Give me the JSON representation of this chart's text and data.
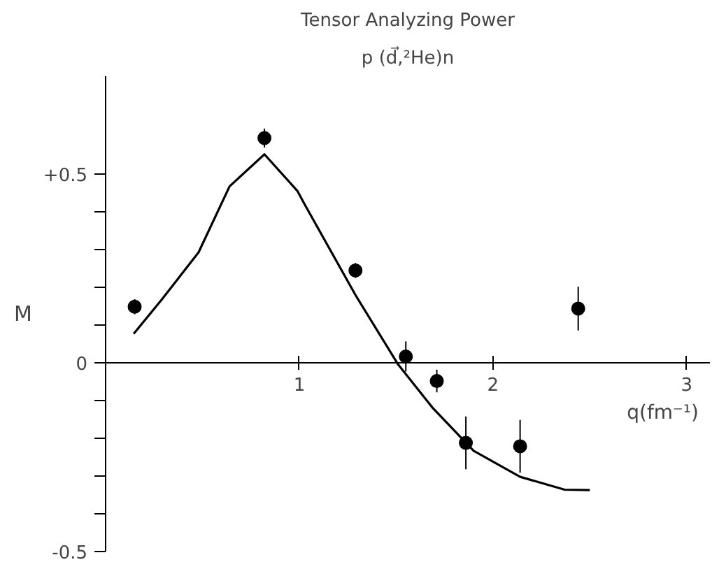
{
  "chart_data": {
    "type": "scatter",
    "title": "Tensor Analyzing Power",
    "subtitle": "p (d⃗,²He)n",
    "xlabel": "q(fm⁻¹)",
    "ylabel": "M",
    "xlim": [
      0,
      3.12
    ],
    "ylim": [
      -0.5,
      0.76
    ],
    "xticks": [
      1,
      2,
      3
    ],
    "yticks": [
      {
        "value": -0.5,
        "label": "-0.5"
      },
      {
        "value": -0.4,
        "label": null
      },
      {
        "value": -0.3,
        "label": null
      },
      {
        "value": -0.2,
        "label": null
      },
      {
        "value": -0.1,
        "label": null
      },
      {
        "value": 0,
        "label": "0"
      },
      {
        "value": 0.1,
        "label": null
      },
      {
        "value": 0.2,
        "label": null
      },
      {
        "value": 0.3,
        "label": null
      },
      {
        "value": 0.4,
        "label": null
      },
      {
        "value": 0.5,
        "label": "+0.5"
      }
    ],
    "grid": false,
    "marker": "circle",
    "series": [
      {
        "color": "#000000",
        "x": [
          0.15,
          0.82,
          1.29,
          1.55,
          1.71,
          1.86,
          2.14,
          2.44
        ],
        "values": [
          0.149,
          0.596,
          0.245,
          0.017,
          -0.048,
          -0.212,
          -0.221,
          0.144
        ],
        "errors": [
          0.02,
          0.025,
          0.02,
          0.04,
          0.03,
          0.07,
          0.07,
          0.058
        ]
      },
      {
        "type": "line",
        "color": "#000000",
        "marker": "none",
        "line_style": "solid",
        "x": [
          0.145,
          0.29,
          0.48,
          0.64,
          0.82,
          0.99,
          1.03,
          1.29,
          1.51,
          1.69,
          1.9,
          2.14,
          2.37,
          2.5
        ],
        "values": [
          0.077,
          0.168,
          0.293,
          0.468,
          0.553,
          0.456,
          0.418,
          0.18,
          -0.004,
          -0.12,
          -0.233,
          -0.302,
          -0.336,
          -0.337
        ]
      }
    ]
  }
}
